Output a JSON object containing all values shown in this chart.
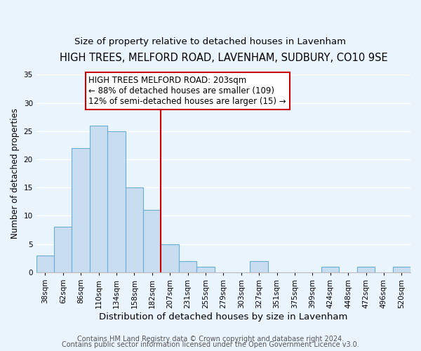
{
  "title": "HIGH TREES, MELFORD ROAD, LAVENHAM, SUDBURY, CO10 9SE",
  "subtitle": "Size of property relative to detached houses in Lavenham",
  "xlabel": "Distribution of detached houses by size in Lavenham",
  "ylabel": "Number of detached properties",
  "bin_labels": [
    "38sqm",
    "62sqm",
    "86sqm",
    "110sqm",
    "134sqm",
    "158sqm",
    "182sqm",
    "207sqm",
    "231sqm",
    "255sqm",
    "279sqm",
    "303sqm",
    "327sqm",
    "351sqm",
    "375sqm",
    "399sqm",
    "424sqm",
    "448sqm",
    "472sqm",
    "496sqm",
    "520sqm"
  ],
  "bar_values": [
    3,
    8,
    22,
    26,
    25,
    15,
    11,
    5,
    2,
    1,
    0,
    0,
    2,
    0,
    0,
    0,
    1,
    0,
    1,
    0,
    1
  ],
  "bar_color": "#c8ddf0",
  "bar_edge_color": "#6aaed6",
  "vline_x": 7.0,
  "vline_color": "#cc0000",
  "annotation_title": "HIGH TREES MELFORD ROAD: 203sqm",
  "annotation_line1": "← 88% of detached houses are smaller (109)",
  "annotation_line2": "12% of semi-detached houses are larger (15) →",
  "ylim": [
    0,
    35
  ],
  "yticks": [
    0,
    5,
    10,
    15,
    20,
    25,
    30,
    35
  ],
  "footer1": "Contains HM Land Registry data © Crown copyright and database right 2024.",
  "footer2": "Contains public sector information licensed under the Open Government Licence v3.0.",
  "bg_color": "#eaf4fc",
  "plot_bg_color": "#eaf4fc",
  "title_fontsize": 10.5,
  "subtitle_fontsize": 9.5,
  "xlabel_fontsize": 9.5,
  "ylabel_fontsize": 8.5,
  "tick_fontsize": 7.5,
  "annotation_fontsize": 8.5,
  "footer_fontsize": 7
}
